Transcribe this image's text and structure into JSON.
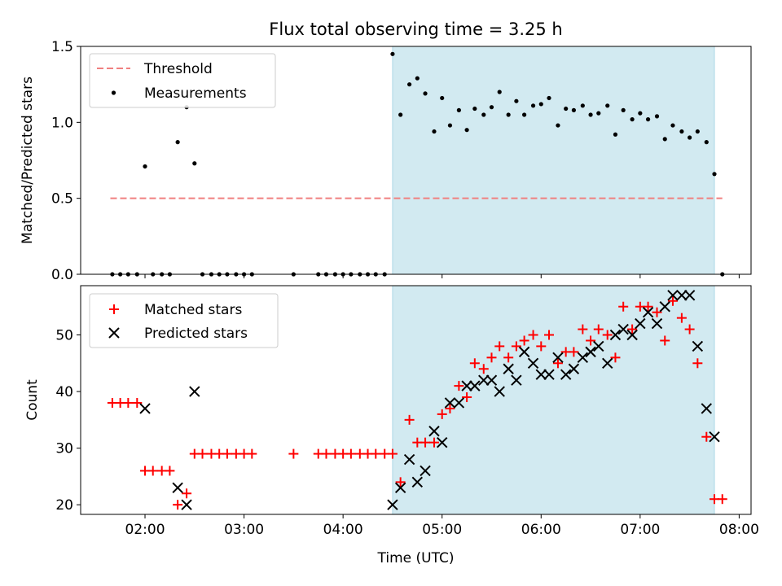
{
  "title": "Flux total observing time = 3.25 h",
  "colors": {
    "threshold": "#f08080",
    "measurements": "#000000",
    "matched": "#ff0000",
    "predicted": "#000000",
    "shade": "#add8e6"
  },
  "chart_data": [
    {
      "type": "scatter",
      "panel": "top",
      "ylabel": "Matched/Predicted stars",
      "xlim": [
        1.35,
        8.12
      ],
      "ylim": [
        0,
        1.5
      ],
      "yticks": [
        0.0,
        0.5,
        1.0,
        1.5
      ],
      "ytick_labels": [
        "0.0",
        "0.5",
        "1.0",
        "1.5"
      ],
      "xticks": [
        2,
        3,
        4,
        5,
        6,
        7,
        8
      ],
      "shaded_interval": {
        "start": 4.5,
        "end": 7.75
      },
      "legend": {
        "location": "top-left",
        "threshold": "Threshold",
        "measurements": "Measurements"
      },
      "threshold": {
        "value": 0.5,
        "xrange": [
          1.65,
          7.83
        ]
      },
      "measurements": {
        "x": [
          1.67,
          1.75,
          1.83,
          1.92,
          2.0,
          2.08,
          2.17,
          2.25,
          2.33,
          2.42,
          2.5,
          2.58,
          2.67,
          2.75,
          2.83,
          2.92,
          3.0,
          3.08,
          3.5,
          3.75,
          3.83,
          3.92,
          4.0,
          4.08,
          4.17,
          4.25,
          4.33,
          4.42,
          4.5,
          4.58,
          4.67,
          4.75,
          4.83,
          4.92,
          5.0,
          5.08,
          5.17,
          5.25,
          5.33,
          5.42,
          5.5,
          5.58,
          5.67,
          5.75,
          5.83,
          5.92,
          6.0,
          6.08,
          6.17,
          6.25,
          6.33,
          6.42,
          6.5,
          6.58,
          6.67,
          6.75,
          6.83,
          6.92,
          7.0,
          7.08,
          7.17,
          7.25,
          7.33,
          7.42,
          7.5,
          7.58,
          7.67,
          7.75,
          7.83
        ],
        "y": [
          0,
          0,
          0,
          0,
          0.71,
          0,
          0,
          0,
          0.87,
          1.1,
          0.73,
          0,
          0,
          0,
          0,
          0,
          0,
          0,
          0,
          0,
          0,
          0,
          0,
          0,
          0,
          0,
          0,
          0,
          1.45,
          1.05,
          1.25,
          1.29,
          1.19,
          0.94,
          1.16,
          0.98,
          1.08,
          0.95,
          1.09,
          1.05,
          1.1,
          1.2,
          1.05,
          1.14,
          1.05,
          1.11,
          1.12,
          1.16,
          0.98,
          1.09,
          1.08,
          1.11,
          1.05,
          1.06,
          1.11,
          0.92,
          1.08,
          1.02,
          1.06,
          1.02,
          1.04,
          0.89,
          0.98,
          0.94,
          0.9,
          0.94,
          0.87,
          0.66,
          0
        ]
      }
    },
    {
      "type": "scatter",
      "panel": "bottom",
      "xlabel": "Time (UTC)",
      "ylabel": "Count",
      "xlim": [
        1.35,
        8.12
      ],
      "ylim": [
        18.3,
        58.7
      ],
      "yticks": [
        20,
        30,
        40,
        50
      ],
      "ytick_labels": [
        "20",
        "30",
        "40",
        "50"
      ],
      "xticks": [
        2,
        3,
        4,
        5,
        6,
        7,
        8
      ],
      "xtick_labels": [
        "02:00",
        "03:00",
        "04:00",
        "05:00",
        "06:00",
        "07:00",
        "08:00"
      ],
      "shaded_interval": {
        "start": 4.5,
        "end": 7.75
      },
      "legend": {
        "location": "top-left"
      },
      "series": [
        {
          "name": "Matched stars",
          "marker": "plus",
          "x": [
            1.67,
            1.75,
            1.83,
            1.92,
            2.0,
            2.08,
            2.17,
            2.25,
            2.33,
            2.42,
            2.5,
            2.58,
            2.67,
            2.75,
            2.83,
            2.92,
            3.0,
            3.08,
            3.5,
            3.75,
            3.83,
            3.92,
            4.0,
            4.08,
            4.17,
            4.25,
            4.33,
            4.42,
            4.5,
            4.58,
            4.67,
            4.75,
            4.83,
            4.92,
            5.0,
            5.08,
            5.17,
            5.25,
            5.33,
            5.42,
            5.5,
            5.58,
            5.67,
            5.75,
            5.83,
            5.92,
            6.0,
            6.08,
            6.17,
            6.25,
            6.33,
            6.42,
            6.5,
            6.58,
            6.67,
            6.75,
            6.83,
            6.92,
            7.0,
            7.08,
            7.17,
            7.25,
            7.33,
            7.42,
            7.5,
            7.58,
            7.67,
            7.75,
            7.83
          ],
          "y": [
            38,
            38,
            38,
            38,
            26,
            26,
            26,
            26,
            20,
            22,
            29,
            29,
            29,
            29,
            29,
            29,
            29,
            29,
            29,
            29,
            29,
            29,
            29,
            29,
            29,
            29,
            29,
            29,
            29,
            24,
            35,
            31,
            31,
            31,
            36,
            37,
            41,
            39,
            45,
            44,
            46,
            48,
            46,
            48,
            49,
            50,
            48,
            50,
            45,
            47,
            47,
            51,
            49,
            51,
            50,
            46,
            55,
            51,
            55,
            55,
            54,
            49,
            56,
            53,
            51,
            45,
            32,
            21,
            21
          ]
        },
        {
          "name": "Predicted stars",
          "marker": "x",
          "x": [
            2.0,
            2.33,
            2.42,
            2.5,
            4.5,
            4.58,
            4.67,
            4.75,
            4.83,
            4.92,
            5.0,
            5.08,
            5.17,
            5.25,
            5.33,
            5.42,
            5.5,
            5.58,
            5.67,
            5.75,
            5.83,
            5.92,
            6.0,
            6.08,
            6.17,
            6.25,
            6.33,
            6.42,
            6.5,
            6.58,
            6.67,
            6.75,
            6.83,
            6.92,
            7.0,
            7.08,
            7.17,
            7.25,
            7.33,
            7.42,
            7.5,
            7.58,
            7.67,
            7.75
          ],
          "y": [
            37,
            23,
            20,
            40,
            20,
            23,
            28,
            24,
            26,
            33,
            31,
            38,
            38,
            41,
            41,
            42,
            42,
            40,
            44,
            42,
            47,
            45,
            43,
            43,
            46,
            43,
            44,
            46,
            47,
            48,
            45,
            50,
            51,
            50,
            52,
            54,
            52,
            55,
            57,
            57,
            57,
            48,
            37,
            32
          ]
        }
      ]
    }
  ]
}
